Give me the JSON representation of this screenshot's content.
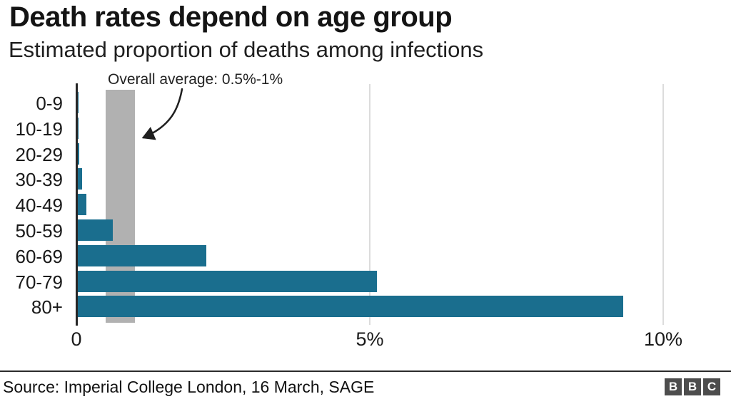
{
  "header": {
    "title": "Death rates depend on age group",
    "subtitle": "Estimated proportion of deaths among infections"
  },
  "annotation": {
    "text": "Overall average: 0.5%-1%"
  },
  "chart_data": {
    "type": "bar",
    "orientation": "horizontal",
    "title": "Death rates depend on age group",
    "subtitle": "Estimated proportion of deaths among infections",
    "categories": [
      "0-9",
      "10-19",
      "20-29",
      "30-39",
      "40-49",
      "50-59",
      "60-69",
      "70-79",
      "80+"
    ],
    "values": [
      0.002,
      0.006,
      0.03,
      0.08,
      0.15,
      0.6,
      2.2,
      5.1,
      9.3
    ],
    "unit": "%",
    "xlim": [
      0,
      10.4
    ],
    "x_ticks": [
      {
        "value": 0,
        "label": "0"
      },
      {
        "value": 5,
        "label": "5%"
      },
      {
        "value": 10,
        "label": "10%"
      }
    ],
    "grid": "vertical",
    "legend": "none",
    "band": {
      "from": 0.5,
      "to": 1.0,
      "annotation": "Overall average: 0.5%-1%"
    }
  },
  "footer": {
    "source": "Source: Imperial College London, 16 March, SAGE",
    "logo_letters": [
      "B",
      "B",
      "C"
    ]
  },
  "colors": {
    "bar": "#1a6e8e",
    "band": "#b1b1b1",
    "axis": "#262626",
    "gridline": "#dcdcdc",
    "arrow": "#1f1f1f"
  }
}
